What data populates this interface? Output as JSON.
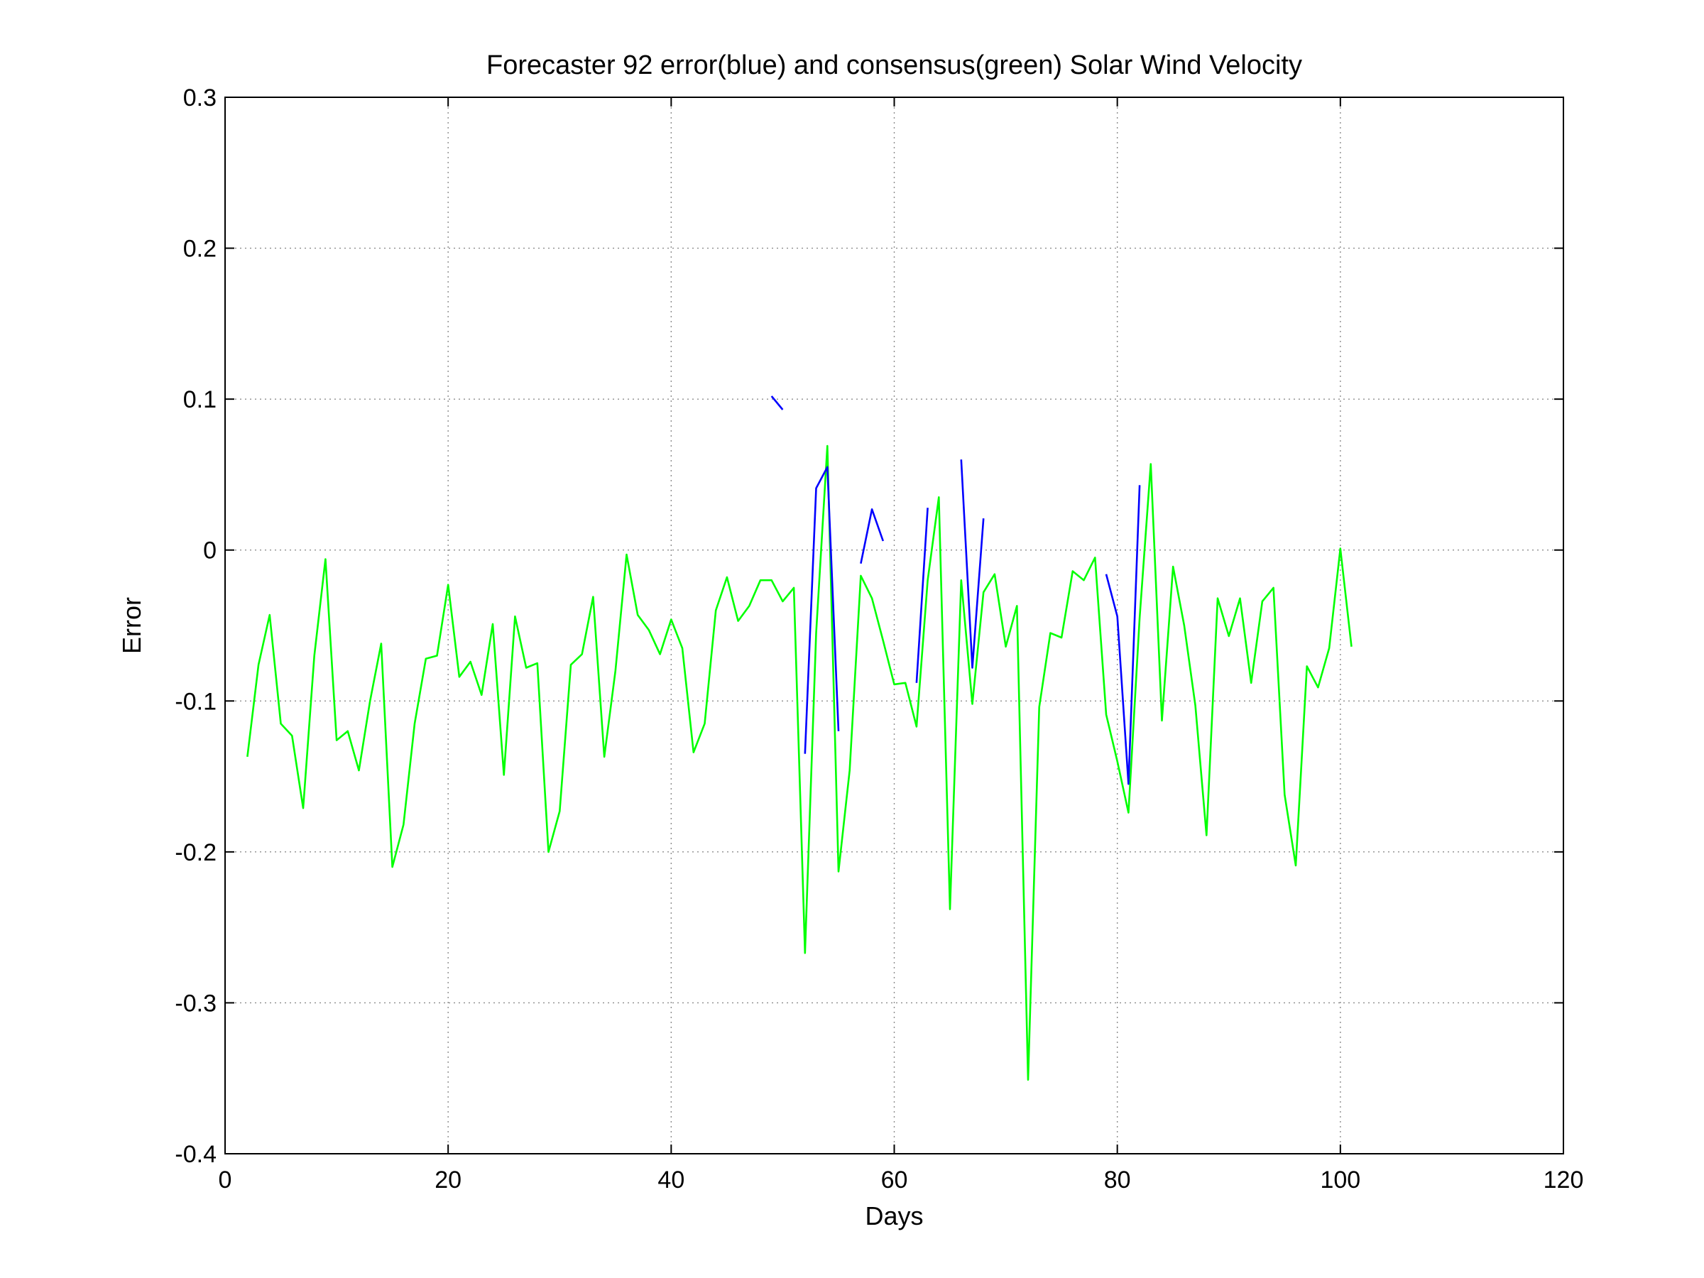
{
  "chart_data": {
    "type": "line",
    "title": "Forecaster 92 error(blue) and consensus(green)  Solar Wind Velocity",
    "xlabel": "Days",
    "ylabel": "Error",
    "xlim": [
      0,
      120
    ],
    "ylim": [
      -0.4,
      0.3
    ],
    "xticks": [
      0,
      20,
      40,
      60,
      80,
      100,
      120
    ],
    "xtick_labels": [
      "0",
      "20",
      "40",
      "60",
      "80",
      "100",
      "120"
    ],
    "yticks": [
      -0.4,
      -0.3,
      -0.2,
      -0.1,
      0,
      0.1,
      0.2,
      0.3
    ],
    "ytick_labels": [
      "-0.4",
      "-0.3",
      "-0.2",
      "-0.1",
      "0",
      "0.1",
      "0.2",
      "0.3"
    ],
    "grid": true,
    "series": [
      {
        "color": "#00ff00",
        "points": [
          [
            2,
            -0.137
          ],
          [
            3,
            -0.076
          ],
          [
            4,
            -0.043
          ],
          [
            5,
            -0.115
          ],
          [
            6,
            -0.123
          ],
          [
            7,
            -0.171
          ],
          [
            8,
            -0.07
          ],
          [
            9,
            -0.006
          ],
          [
            10,
            -0.126
          ],
          [
            11,
            -0.12
          ],
          [
            12,
            -0.146
          ],
          [
            13,
            -0.1
          ],
          [
            14,
            -0.062
          ],
          [
            15,
            -0.21
          ],
          [
            16,
            -0.182
          ],
          [
            17,
            -0.115
          ],
          [
            18,
            -0.072
          ],
          [
            19,
            -0.07
          ],
          [
            20,
            -0.023
          ],
          [
            21,
            -0.084
          ],
          [
            22,
            -0.074
          ],
          [
            23,
            -0.096
          ],
          [
            24,
            -0.049
          ],
          [
            25,
            -0.149
          ],
          [
            26,
            -0.044
          ],
          [
            27,
            -0.078
          ],
          [
            28,
            -0.075
          ],
          [
            29,
            -0.2
          ],
          [
            30,
            -0.173
          ],
          [
            31,
            -0.076
          ],
          [
            32,
            -0.069
          ],
          [
            33,
            -0.031
          ],
          [
            34,
            -0.137
          ],
          [
            35,
            -0.08
          ],
          [
            36,
            -0.003
          ],
          [
            37,
            -0.043
          ],
          [
            38,
            -0.053
          ],
          [
            39,
            -0.069
          ],
          [
            40,
            -0.046
          ],
          [
            41,
            -0.065
          ],
          [
            42,
            -0.134
          ],
          [
            43,
            -0.115
          ],
          [
            44,
            -0.04
          ],
          [
            45,
            -0.018
          ],
          [
            46,
            -0.047
          ],
          [
            47,
            -0.037
          ],
          [
            48,
            -0.02
          ],
          [
            49,
            -0.02
          ],
          [
            50,
            -0.034
          ],
          [
            51,
            -0.025
          ],
          [
            52,
            -0.267
          ],
          [
            53,
            -0.055
          ],
          [
            54,
            0.069
          ],
          [
            55,
            -0.213
          ],
          [
            56,
            -0.146
          ],
          [
            57,
            -0.017
          ],
          [
            58,
            -0.032
          ],
          [
            59,
            -0.06
          ],
          [
            60,
            -0.089
          ],
          [
            61,
            -0.088
          ],
          [
            62,
            -0.117
          ],
          [
            63,
            -0.02
          ],
          [
            64,
            0.035
          ],
          [
            65,
            -0.238
          ],
          [
            66,
            -0.02
          ],
          [
            67,
            -0.102
          ],
          [
            68,
            -0.028
          ],
          [
            69,
            -0.016
          ],
          [
            70,
            -0.064
          ],
          [
            71,
            -0.037
          ],
          [
            72,
            -0.351
          ],
          [
            73,
            -0.104
          ],
          [
            74,
            -0.055
          ],
          [
            75,
            -0.058
          ],
          [
            76,
            -0.014
          ],
          [
            77,
            -0.02
          ],
          [
            78,
            -0.005
          ],
          [
            79,
            -0.109
          ],
          [
            80,
            -0.14
          ],
          [
            81,
            -0.174
          ],
          [
            82,
            -0.045
          ],
          [
            83,
            0.057
          ],
          [
            84,
            -0.113
          ],
          [
            85,
            -0.011
          ],
          [
            86,
            -0.05
          ],
          [
            87,
            -0.103
          ],
          [
            88,
            -0.189
          ],
          [
            89,
            -0.032
          ],
          [
            90,
            -0.057
          ],
          [
            91,
            -0.032
          ],
          [
            92,
            -0.088
          ],
          [
            93,
            -0.034
          ],
          [
            94,
            -0.025
          ],
          [
            95,
            -0.162
          ],
          [
            96,
            -0.209
          ],
          [
            97,
            -0.077
          ],
          [
            98,
            -0.091
          ],
          [
            99,
            -0.065
          ],
          [
            100,
            0.001
          ],
          [
            101,
            -0.064
          ]
        ]
      },
      {
        "color": "#0000ff",
        "points": [
          [
            49,
            0.102
          ],
          [
            50,
            0.093
          ],
          [
            51,
            null
          ],
          [
            52,
            -0.135
          ],
          [
            53,
            0.041
          ],
          [
            54,
            0.055
          ],
          [
            55,
            -0.12
          ],
          [
            56,
            null
          ],
          [
            57,
            -0.009
          ],
          [
            58,
            0.027
          ],
          [
            59,
            0.006
          ],
          [
            60,
            null
          ],
          [
            61,
            null
          ],
          [
            62,
            -0.088
          ],
          [
            63,
            0.028
          ],
          [
            64,
            null
          ],
          [
            65,
            null
          ],
          [
            66,
            0.06
          ],
          [
            67,
            -0.078
          ],
          [
            68,
            0.021
          ],
          [
            69,
            null
          ],
          [
            70,
            null
          ],
          [
            71,
            null
          ],
          [
            72,
            null
          ],
          [
            73,
            null
          ],
          [
            74,
            null
          ],
          [
            75,
            null
          ],
          [
            76,
            null
          ],
          [
            77,
            null
          ],
          [
            78,
            null
          ],
          [
            79,
            -0.016
          ],
          [
            80,
            -0.044
          ],
          [
            81,
            -0.155
          ],
          [
            82,
            0.043
          ]
        ]
      }
    ]
  }
}
